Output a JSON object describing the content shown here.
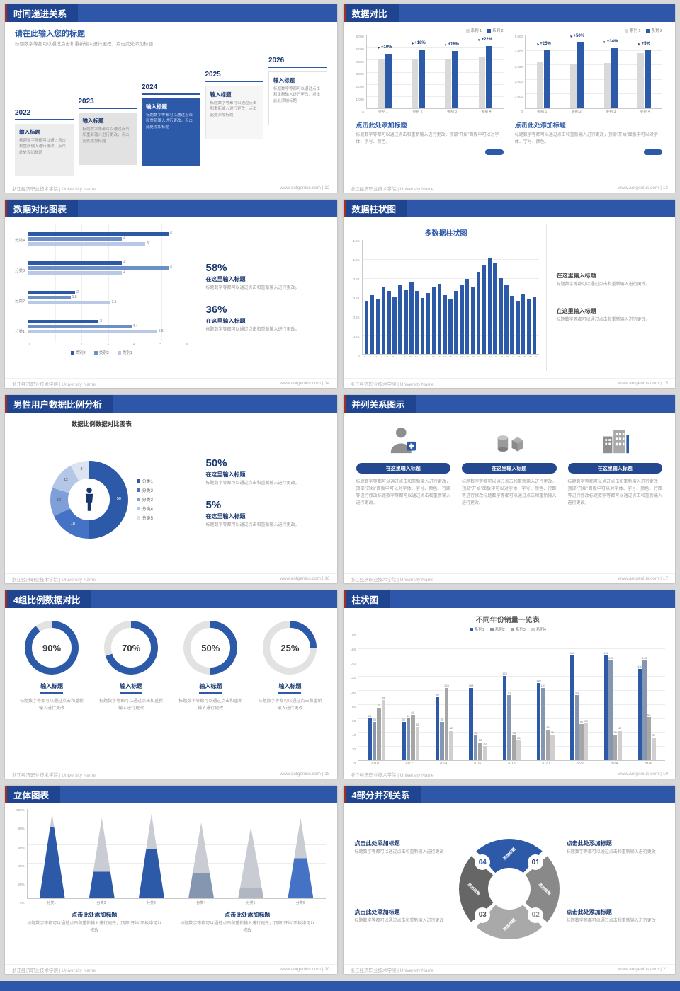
{
  "global": {
    "footer_left": "浙江经济职业技术学院 | University Name",
    "footer_site": "www.aotgenius.com",
    "colors": {
      "primary": "#2d5aa8",
      "navy": "#17366e",
      "header": "#2e57a9"
    }
  },
  "slides": {
    "s1": {
      "header": "时间递进关系",
      "page": "12",
      "title": "请在此输入您的标题",
      "subtitle": "标题数字等都可以通过点击和重新输入进行更改，点击此处添加标题",
      "items": [
        {
          "year": "2022",
          "label": "输入标题",
          "body": "标题数字等都可以通过点击和重新输入进行更改，点击此处添加标题"
        },
        {
          "year": "2023",
          "label": "输入标题",
          "body": "标题数字等都可以通过点击和重新输入进行更改，点击此处添加标题"
        },
        {
          "year": "2024",
          "label": "输入标题",
          "body": "标题数字等都可以通过点击和重新输入进行更改，点击此处添加标题"
        },
        {
          "year": "2025",
          "label": "输入标题",
          "body": "标题数字等都可以通过点击和重新输入进行更改，点击此处添加标题"
        },
        {
          "year": "2026",
          "label": "输入标题",
          "body": "标题数字等都可以通过点击和重新输入进行更改，点击此处添加标题"
        }
      ]
    },
    "s2": {
      "header": "数据对比",
      "page": "13",
      "panels": [
        {
          "title": "点击此处添加标题",
          "body": "标题数字等都可以通过点击和重新输入进行更改，顶部“开始”面板中可以对字体、字号、颜色。"
        },
        {
          "title": "点击此处添加标题",
          "body": "标题数字等都可以通过点击和重新输入进行更改，顶部“开始”面板中可以对字体、字号、颜色。"
        }
      ]
    },
    "s3": {
      "header": "数据对比图表",
      "page": "14",
      "stats": [
        {
          "pct": "58%",
          "title": "在这里输入标题",
          "body": "标题数字等都可以通过点击和重新输入进行更改。"
        },
        {
          "pct": "36%",
          "title": "在这里输入标题",
          "body": "标题数字等都可以通过点击和重新输入进行更改。"
        }
      ]
    },
    "s4": {
      "header": "数据柱状图",
      "page": "15",
      "stats": [
        {
          "title": "在这里输入标题",
          "body": "标题数字等都可以通过点击和重新输入进行更改。"
        },
        {
          "title": "在这里输入标题",
          "body": "标题数字等都可以通过点击和重新输入进行更改。"
        }
      ]
    },
    "s5": {
      "header": "男性用户数据比例分析",
      "page": "16",
      "chart_title": "数据比例数据对比图表",
      "stats": [
        {
          "pct": "50%",
          "title": "在这里输入标题",
          "body": "标题数字等都可以通过点击和重新输入进行更改。"
        },
        {
          "pct": "5%",
          "title": "在这里输入标题",
          "body": "标题数字等都可以通过点击和重新输入进行更改。"
        }
      ]
    },
    "s6": {
      "header": "并列关系图示",
      "page": "17",
      "cols": [
        {
          "button": "在这里输入标题",
          "body": "标题数字等都可以通过点击和重新输入进行更改，顶部“开始”面板中可以对字体、字号、颜色、行距等进行修改标题数字等都可以通过点击和重新输入进行更改。"
        },
        {
          "button": "在这里输入标题",
          "body": "标题数字等都可以通过点击和重新输入进行更改，顶部“开始”面板中可以对字体、字号、颜色、行距等进行修改标题数字等都可以通过点击和重新输入进行更改。"
        },
        {
          "button": "在这里输入标题",
          "body": "标题数字等都可以通过点击和重新输入进行更改，顶部“开始”面板中可以对字体、字号、颜色、行距等进行修改标题数字等都可以通过点击和重新输入进行更改。"
        }
      ]
    },
    "s7": {
      "header": "4组比例数据对比",
      "page": "18",
      "cards": [
        {
          "title": "输入标题",
          "body": "标题数字等都可以通过点击和重新输入进行更改"
        },
        {
          "title": "输入标题",
          "body": "标题数字等都可以通过点击和重新输入进行更改"
        },
        {
          "title": "输入标题",
          "body": "标题数字等都可以通过点击和重新输入进行更改"
        },
        {
          "title": "输入标题",
          "body": "标题数字等都可以通过点击和重新输入进行更改"
        }
      ]
    },
    "s8": {
      "header": "柱状图",
      "page": "19"
    },
    "s9": {
      "header": "立体图表",
      "page": "20",
      "blocks": [
        {
          "title": "点击此处添加标题",
          "body": "标题数字等都可以通过点击和重新输入进行更改，顶部“开始”面板中可以修改"
        },
        {
          "title": "点击此处添加标题",
          "body": "标题数字等都可以通过点击和重新输入进行更改，顶部“开始”面板中可以修改"
        }
      ]
    },
    "s10": {
      "header": "4部分并列关系",
      "page": "21",
      "blocks": [
        {
          "title": "点击此处添加标题",
          "body": "标题数字等都可以通过点击和重新输入进行更改"
        },
        {
          "title": "点击此处添加标题",
          "body": "标题数字等都可以通过点击和重新输入进行更改"
        },
        {
          "title": "点击此处添加标题",
          "body": "标题数字等都可以通过点击和重新输入进行更改"
        },
        {
          "title": "点击此处添加标题",
          "body": "标题数字等都可以通过点击和重新输入进行更改"
        }
      ]
    }
  },
  "chart_data": {
    "compare_left": {
      "type": "bar",
      "categories": [
        "类别 1",
        "类别 2",
        "类别 3",
        "类别 4"
      ],
      "series": [
        {
          "name": "系列 1",
          "color": "#d9d9d9",
          "values": [
            4100,
            4100,
            4050,
            4200
          ]
        },
        {
          "name": "系列 2",
          "color": "#2d5aa8",
          "values": [
            4510,
            4840,
            4700,
            5120
          ]
        }
      ],
      "labels": [
        "+10%",
        "+18%",
        "+16%",
        "+22%"
      ],
      "ylim": [
        0,
        6000
      ],
      "yticks": [
        "6,000",
        "5,000",
        "4,000",
        "3,000",
        "2,000",
        "1,000",
        "0"
      ]
    },
    "compare_right": {
      "type": "bar",
      "categories": [
        "类别 1",
        "类别 2",
        "类别 3",
        "类别 4"
      ],
      "series": [
        {
          "name": "系列 1",
          "color": "#d9d9d9",
          "values": [
            3200,
            3000,
            3100,
            3800
          ]
        },
        {
          "name": "系列 2",
          "color": "#2d5aa8",
          "values": [
            4000,
            4500,
            4150,
            3990
          ]
        }
      ],
      "labels": [
        "+25%",
        "+50%",
        "+34%",
        "+5%"
      ],
      "ylim": [
        0,
        5000
      ],
      "yticks": [
        "5,000",
        "4,000",
        "3,000",
        "2,000",
        "1,000",
        "0"
      ]
    },
    "hbar": {
      "type": "bar-horizontal",
      "groups": [
        "分类4",
        "分类3",
        "分类2",
        "分类1"
      ],
      "series_names": [
        "类别3",
        "类别2",
        "类别1"
      ],
      "colors": [
        "#2d5aa8",
        "#6d8fc7",
        "#b8c9e8"
      ],
      "values": [
        [
          6,
          4,
          5
        ],
        [
          4,
          6,
          4
        ],
        [
          2,
          1.8,
          3.5
        ],
        [
          3,
          4.4,
          5.5
        ]
      ],
      "xlim": [
        0,
        6
      ],
      "xticks": [
        "0",
        "1",
        "2",
        "3",
        "4",
        "5",
        "6"
      ]
    },
    "multi_col": {
      "type": "bar",
      "title": "多数据柱状图",
      "color": "#2d5aa8",
      "categories": [
        "1",
        "2",
        "3",
        "4",
        "5",
        "6",
        "7",
        "8",
        "9",
        "10",
        "11",
        "12",
        "13",
        "14",
        "15",
        "16",
        "17",
        "18",
        "19",
        "20",
        "21",
        "22",
        "23",
        "24",
        "25",
        "26",
        "27",
        "28",
        "29",
        "30",
        "31"
      ],
      "values": [
        560,
        620,
        580,
        700,
        660,
        600,
        720,
        680,
        760,
        660,
        590,
        640,
        700,
        740,
        620,
        580,
        660,
        720,
        790,
        700,
        860,
        930,
        1010,
        950,
        800,
        730,
        610,
        560,
        630,
        580,
        600
      ],
      "ylim": [
        0,
        1200
      ],
      "yticks": [
        "1.2K",
        "1.0K",
        "0.8K",
        "0.6K",
        "0.4K",
        "0.2K",
        "0"
      ]
    },
    "donut": {
      "type": "pie",
      "labels": [
        "分类1",
        "分类2",
        "分类3",
        "分类4",
        "分类5"
      ],
      "values": [
        50,
        18,
        12,
        12,
        8
      ],
      "colors": [
        "#2d5aa8",
        "#4472c4",
        "#7f9fd8",
        "#b4c7e7",
        "#dce4f2"
      ]
    },
    "rings": {
      "type": "pie",
      "values": [
        90,
        70,
        50,
        25
      ],
      "color": "#2d5aa8",
      "track": "#e2e2e2"
    },
    "grouped": {
      "type": "bar",
      "title": "不同年份销量一览表",
      "categories": [
        "2010",
        "2012",
        "2014",
        "2016",
        "2018",
        "2020",
        "2022",
        "2024",
        "2026"
      ],
      "series": [
        {
          "name": "系列1",
          "color": "#2d5aa8",
          "values": [
            60,
            55,
            90,
            103,
            120,
            110,
            150,
            150,
            130
          ]
        },
        {
          "name": "系列2",
          "color": "#8496b0",
          "values": [
            55,
            60,
            55,
            35,
            93,
            103,
            93,
            143,
            143
          ]
        },
        {
          "name": "系列3",
          "color": "#a6a6a6",
          "values": [
            75,
            65,
            103,
            25,
            35,
            43,
            52,
            36,
            62
          ]
        },
        {
          "name": "系列4",
          "color": "#d0cece",
          "values": [
            86,
            48,
            42,
            20,
            28,
            36,
            53,
            42,
            32
          ]
        }
      ],
      "ylim": [
        0,
        180
      ],
      "yticks": [
        "180",
        "160",
        "140",
        "120",
        "100",
        "80",
        "60",
        "40",
        "20",
        "0"
      ]
    },
    "cones": {
      "type": "bar",
      "categories": [
        "分类1",
        "分类2",
        "分类3",
        "分类4",
        "分类5",
        "分类6"
      ],
      "total": [
        95,
        90,
        95,
        85,
        80,
        90
      ],
      "base": [
        80,
        30,
        55,
        28,
        12,
        45
      ],
      "top_color": "#c9ccd3",
      "base_colors": [
        "#2d5aa8",
        "#2d5aa8",
        "#2d5aa8",
        "#8496b0",
        "#b0b6c2",
        "#4472c4"
      ],
      "yticks": [
        "100%",
        "80%",
        "60%",
        "40%",
        "20%",
        "0%"
      ]
    },
    "cycle": {
      "type": "pie",
      "colors": [
        "#2d5aa8",
        "#898989",
        "#a9a9a9",
        "#666666"
      ],
      "numbers": [
        "01",
        "02",
        "03",
        "04"
      ],
      "number_colors": [
        "#1f3864",
        "#8a8a8a",
        "#555555",
        "#2d5aa8"
      ],
      "label": "添加标题"
    }
  }
}
